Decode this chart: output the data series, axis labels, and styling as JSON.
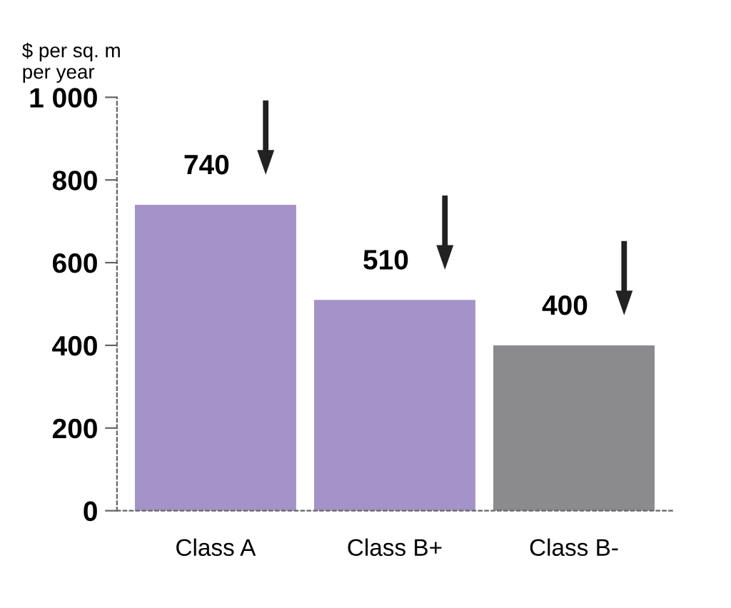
{
  "chart_data": {
    "type": "bar",
    "ylabel": "$ per sq. m\nper year",
    "categories": [
      "Class A",
      "Class B+",
      "Class B-"
    ],
    "values": [
      740,
      510,
      400
    ],
    "colors": [
      "#a393c8",
      "#a393c8",
      "#8b8b8d"
    ],
    "ylim": [
      0,
      1000
    ],
    "yticks": [
      0,
      200,
      400,
      600,
      800,
      {
        "value": 1000,
        "label": "1 000"
      }
    ],
    "data_labels": true,
    "grid": false,
    "legend": false
  }
}
